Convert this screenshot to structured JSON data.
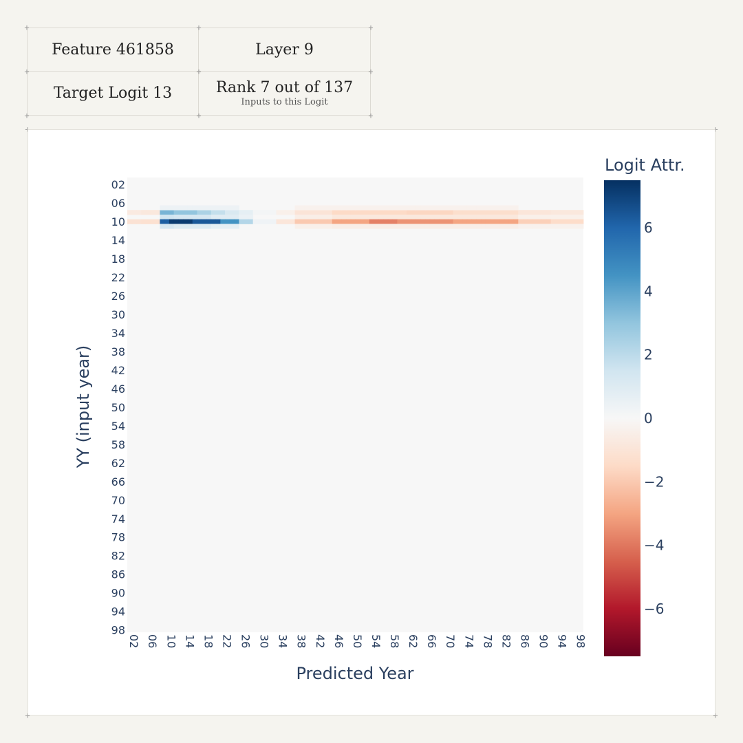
{
  "info": {
    "feature_label": "Feature 461858",
    "layer_label": "Layer 9",
    "target_label": "Target Logit 13",
    "rank_label": "Rank 7 out of 137",
    "rank_sub": "Inputs to this Logit"
  },
  "colors": {
    "page_bg": "#f5f4ef",
    "neutral_cell": "#f7f7f7",
    "axis_text": "#2a3f5f",
    "scale": [
      "#67001f",
      "#b2182b",
      "#d6604d",
      "#f4a582",
      "#fddbc7",
      "#f7f7f7",
      "#d1e5f0",
      "#92c5de",
      "#4393c3",
      "#2166ac",
      "#053061"
    ]
  },
  "chart_data": {
    "type": "heatmap",
    "title": "",
    "xlabel": "Predicted Year",
    "ylabel": "YY (input year)",
    "colorbar_title": "Logit Attr.",
    "zlim": [
      -7.5,
      7.5
    ],
    "colorbar_ticks": [
      6,
      4,
      2,
      0,
      -2,
      -4,
      -6
    ],
    "colorbar_tick_labels": [
      "6",
      "4",
      "2",
      "0",
      "−2",
      "−4",
      "−6"
    ],
    "x_tick_labels": [
      "02",
      "06",
      "10",
      "14",
      "18",
      "22",
      "26",
      "30",
      "34",
      "38",
      "42",
      "46",
      "50",
      "54",
      "58",
      "62",
      "66",
      "70",
      "74",
      "78",
      "82",
      "86",
      "90",
      "94",
      "98"
    ],
    "y_tick_labels": [
      "02",
      "06",
      "10",
      "14",
      "18",
      "22",
      "26",
      "30",
      "34",
      "38",
      "42",
      "46",
      "50",
      "54",
      "58",
      "62",
      "66",
      "70",
      "74",
      "78",
      "82",
      "86",
      "90",
      "94",
      "98"
    ],
    "x_range": [
      1,
      98
    ],
    "y_range": [
      1,
      98
    ],
    "background_value": 0,
    "rows": [
      {
        "input_year": 8,
        "segments": [
          {
            "x": [
              1,
              3
            ],
            "value": -0.7
          },
          {
            "x": [
              4,
              7
            ],
            "value": -0.8
          },
          {
            "x": [
              8,
              10
            ],
            "value": 3.5
          },
          {
            "x": [
              11,
              15
            ],
            "value": 3.0
          },
          {
            "x": [
              16,
              18
            ],
            "value": 2.4
          },
          {
            "x": [
              19,
              21
            ],
            "value": 1.8
          },
          {
            "x": [
              22,
              24
            ],
            "value": 1.2
          },
          {
            "x": [
              25,
              27
            ],
            "value": 0.7
          },
          {
            "x": [
              28,
              32
            ],
            "value": 0.15
          },
          {
            "x": [
              33,
              36
            ],
            "value": -0.4
          },
          {
            "x": [
              37,
              44
            ],
            "value": -1.0
          },
          {
            "x": [
              45,
              60
            ],
            "value": -1.5
          },
          {
            "x": [
              61,
              70
            ],
            "value": -1.6
          },
          {
            "x": [
              71,
              84
            ],
            "value": -1.3
          },
          {
            "x": [
              85,
              91
            ],
            "value": -0.9
          },
          {
            "x": [
              92,
              98
            ],
            "value": -0.8
          }
        ]
      },
      {
        "input_year": 9,
        "segments": [
          {
            "x": [
              8,
              10
            ],
            "value": 1.5
          },
          {
            "x": [
              11,
              18
            ],
            "value": 1.3
          },
          {
            "x": [
              19,
              24
            ],
            "value": 0.9
          },
          {
            "x": [
              25,
              27
            ],
            "value": 0.5
          },
          {
            "x": [
              37,
              44
            ],
            "value": -0.5
          },
          {
            "x": [
              45,
              84
            ],
            "value": -0.8
          },
          {
            "x": [
              85,
              98
            ],
            "value": -0.4
          }
        ]
      },
      {
        "input_year": 10,
        "segments": [
          {
            "x": [
              1,
              3
            ],
            "value": -1.1
          },
          {
            "x": [
              4,
              7
            ],
            "value": -1.2
          },
          {
            "x": [
              8,
              9
            ],
            "value": 6.2
          },
          {
            "x": [
              10,
              14
            ],
            "value": 7.2
          },
          {
            "x": [
              15,
              20
            ],
            "value": 6.4
          },
          {
            "x": [
              21,
              24
            ],
            "value": 4.5
          },
          {
            "x": [
              25,
              27
            ],
            "value": 2.2
          },
          {
            "x": [
              28,
              32
            ],
            "value": 0.3
          },
          {
            "x": [
              33,
              36
            ],
            "value": -0.9
          },
          {
            "x": [
              37,
              44
            ],
            "value": -2.0
          },
          {
            "x": [
              45,
              52
            ],
            "value": -3.0
          },
          {
            "x": [
              53,
              58
            ],
            "value": -3.8
          },
          {
            "x": [
              59,
              70
            ],
            "value": -3.4
          },
          {
            "x": [
              71,
              84
            ],
            "value": -3.0
          },
          {
            "x": [
              85,
              91
            ],
            "value": -1.8
          },
          {
            "x": [
              92,
              98
            ],
            "value": -1.4
          }
        ]
      },
      {
        "input_year": 11,
        "segments": [
          {
            "x": [
              8,
              10
            ],
            "value": 1.3
          },
          {
            "x": [
              11,
              18
            ],
            "value": 1.0
          },
          {
            "x": [
              19,
              24
            ],
            "value": 0.7
          },
          {
            "x": [
              37,
              44
            ],
            "value": -0.4
          },
          {
            "x": [
              45,
              84
            ],
            "value": -0.5
          },
          {
            "x": [
              85,
              98
            ],
            "value": -0.3
          }
        ]
      },
      {
        "input_year": 7,
        "segments": [
          {
            "x": [
              8,
              24
            ],
            "value": 0.4
          },
          {
            "x": [
              37,
              84
            ],
            "value": -0.3
          }
        ]
      }
    ]
  }
}
